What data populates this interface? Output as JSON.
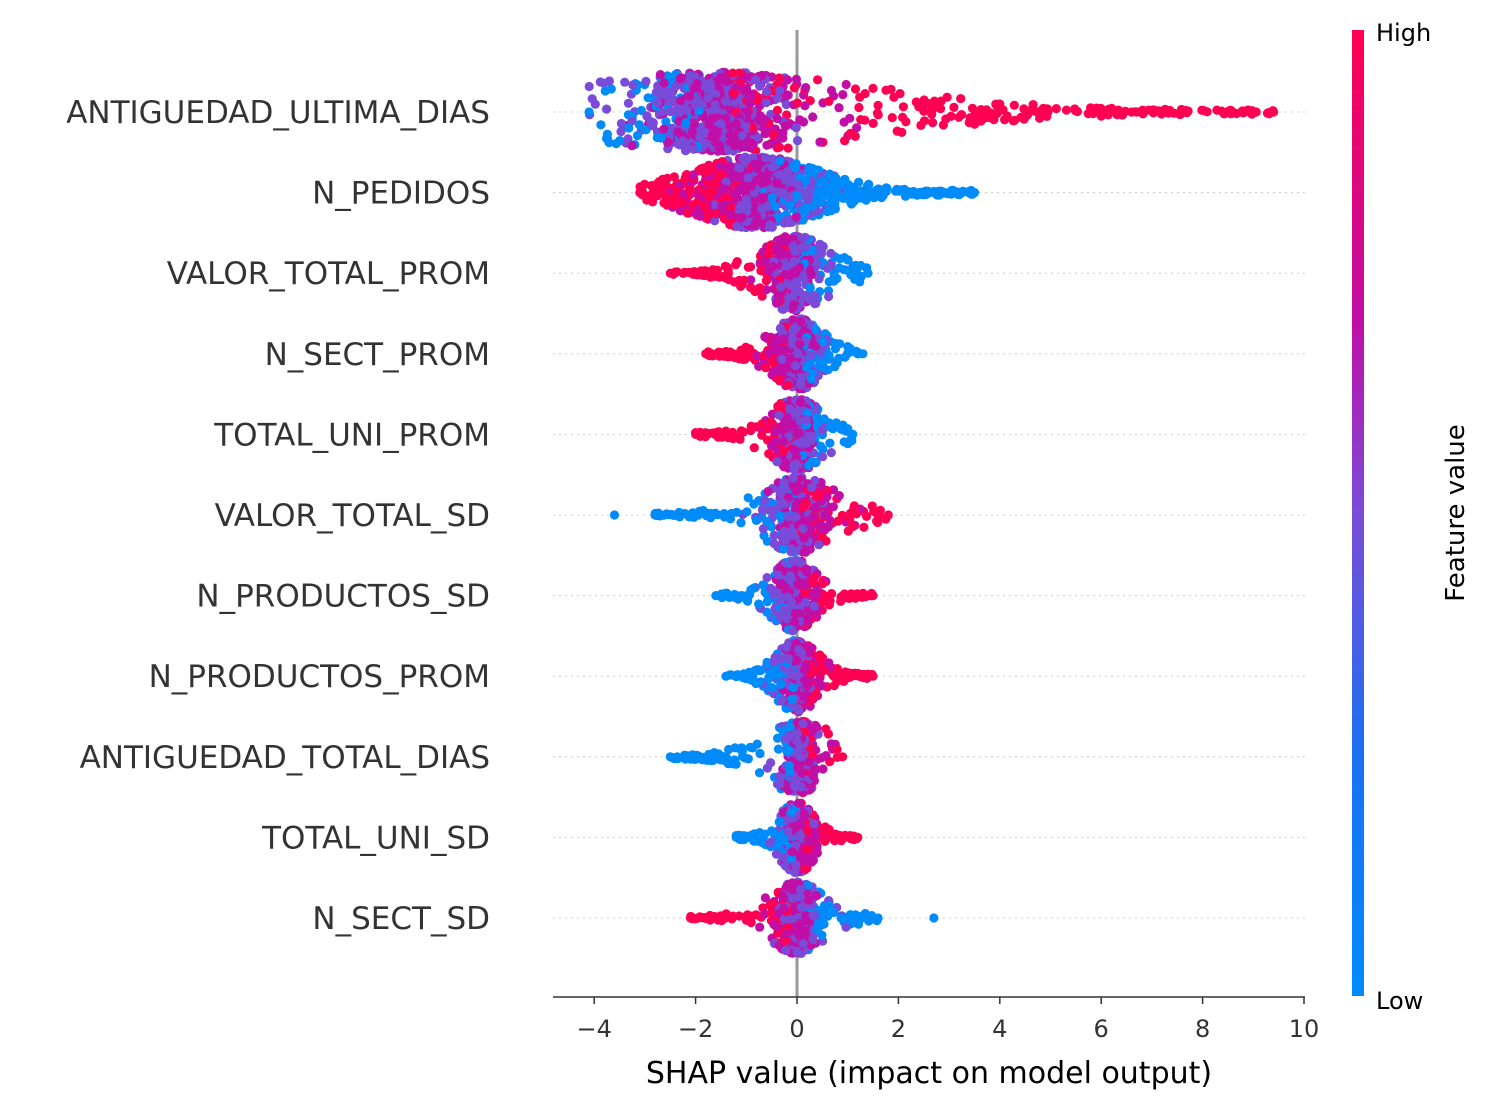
{
  "chart_data": {
    "type": "scatter",
    "subtype": "shap-beeswarm-summary",
    "title": "",
    "xlabel": "SHAP value (impact on model output)",
    "xlim": [
      -4.8,
      10.1
    ],
    "xticks": [
      -4,
      -2,
      0,
      2,
      4,
      6,
      8,
      10
    ],
    "xtick_labels": [
      "−4",
      "−2",
      "0",
      "2",
      "4",
      "6",
      "8",
      "10"
    ],
    "zero_line": 0,
    "grid": false,
    "colorbar": {
      "label": "Feature value",
      "high_label": "High",
      "low_label": "Low",
      "high_color": "#ff0052",
      "mid_color": "#c10ea6",
      "mid2_color": "#7a4bd8",
      "low_color": "#008bfb"
    },
    "features": [
      {
        "name": "ANTIGUEDAD_ULTIMA_DIAS",
        "min": -4.1,
        "max": 9.4,
        "outliers": [
          6.1,
          6.6,
          6.7
        ]
      },
      {
        "name": "N_PEDIDOS",
        "min": -3.1,
        "max": 3.5,
        "outliers": []
      },
      {
        "name": "VALOR_TOTAL_PROM",
        "min": -2.5,
        "max": 1.4,
        "outliers": []
      },
      {
        "name": "N_SECT_PROM",
        "min": -1.8,
        "max": 1.3,
        "outliers": []
      },
      {
        "name": "TOTAL_UNI_PROM",
        "min": -2.0,
        "max": 1.1,
        "outliers": []
      },
      {
        "name": "VALOR_TOTAL_SD",
        "min": -2.8,
        "max": 1.8,
        "outliers": [
          -3.6
        ]
      },
      {
        "name": "N_PRODUCTOS_SD",
        "min": -1.6,
        "max": 1.5,
        "outliers": []
      },
      {
        "name": "N_PRODUCTOS_PROM",
        "min": -1.4,
        "max": 1.5,
        "outliers": []
      },
      {
        "name": "ANTIGUEDAD_TOTAL_DIAS",
        "min": -2.5,
        "max": 0.9,
        "outliers": []
      },
      {
        "name": "TOTAL_UNI_SD",
        "min": -1.2,
        "max": 1.2,
        "outliers": []
      },
      {
        "name": "N_SECT_SD",
        "min": -2.1,
        "max": 1.6,
        "outliers": [
          2.7
        ]
      }
    ]
  }
}
